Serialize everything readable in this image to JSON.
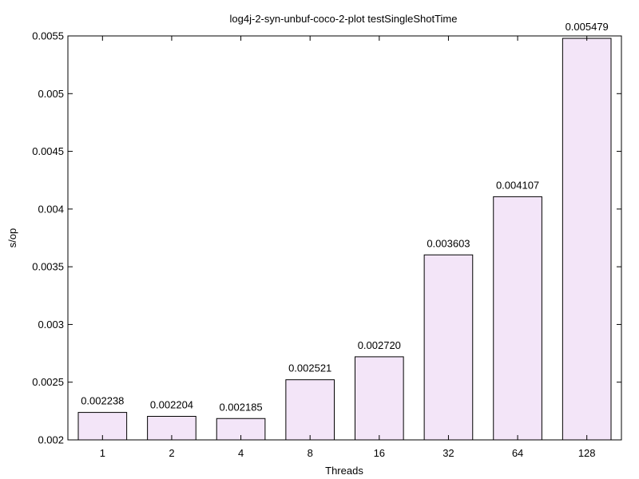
{
  "chart_data": {
    "type": "bar",
    "title": "log4j-2-syn-unbuf-coco-2-plot testSingleShotTime",
    "xlabel": "Threads",
    "ylabel": "s/op",
    "categories": [
      "1",
      "2",
      "4",
      "8",
      "16",
      "32",
      "64",
      "128"
    ],
    "values": [
      0.002238,
      0.002204,
      0.002185,
      0.002521,
      0.00272,
      0.003603,
      0.004107,
      0.005479
    ],
    "value_labels": [
      "0.002238",
      "0.002204",
      "0.002185",
      "0.002521",
      "0.002720",
      "0.003603",
      "0.004107",
      "0.005479"
    ],
    "ylim": [
      0.002,
      0.0055
    ],
    "yticks": [
      0.002,
      0.0025,
      0.003,
      0.0035,
      0.004,
      0.0045,
      0.005,
      0.0055
    ],
    "ytick_labels": [
      "0.002",
      "0.0025",
      "0.003",
      "0.0035",
      "0.004",
      "0.0045",
      "0.005",
      "0.0055"
    ],
    "grid": false,
    "bar_fill": "#f3e5f8",
    "bar_stroke": "#000000"
  }
}
